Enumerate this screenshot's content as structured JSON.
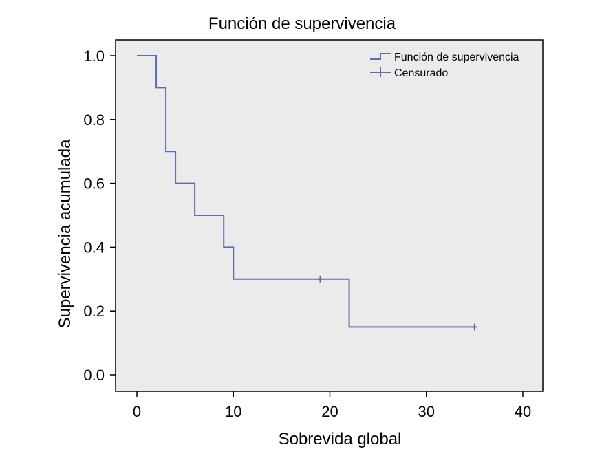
{
  "chart_data": {
    "type": "line",
    "title": "Función de supervivencia",
    "xlabel": "Sobrevida global",
    "ylabel": "Supervivencia acumulada",
    "xlim": [
      0,
      40
    ],
    "ylim": [
      0,
      1
    ],
    "x_ticks": [
      "0",
      "10",
      "20",
      "30",
      "40"
    ],
    "y_ticks": [
      "0.0",
      "0.2",
      "0.4",
      "0.6",
      "0.8",
      "1.0"
    ],
    "grid": false,
    "legend_position": "top-right",
    "colors": {
      "series": "#5b6fae",
      "plot_background": "#ebebeb"
    },
    "series": [
      {
        "name": "Función de supervivencia",
        "step": true,
        "x": [
          0,
          2,
          3,
          4,
          6,
          9,
          10,
          22,
          35
        ],
        "y": [
          1.0,
          0.9,
          0.7,
          0.6,
          0.5,
          0.4,
          0.3,
          0.15,
          0.15
        ]
      },
      {
        "name": "Censurado",
        "marker": "plus",
        "x": [
          19,
          35
        ],
        "y": [
          0.3,
          0.15
        ]
      }
    ]
  }
}
